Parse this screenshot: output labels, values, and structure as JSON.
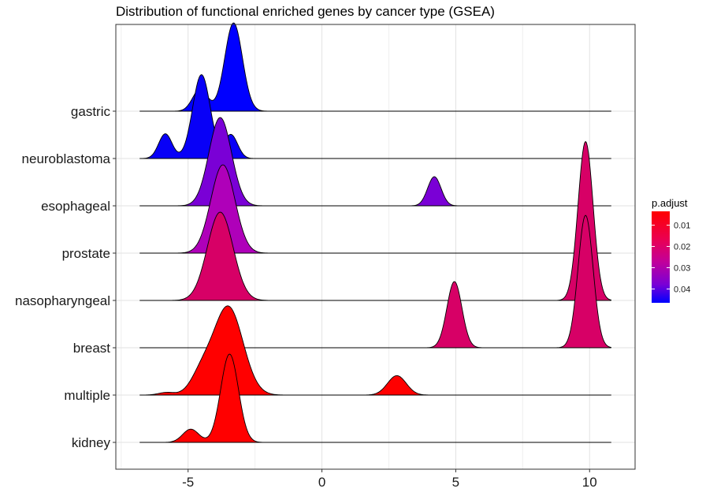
{
  "chart_data": {
    "type": "ridgeline",
    "title": "Distribution of functional enriched genes by cancer type (GSEA)",
    "xlabel": "",
    "ylabel": "",
    "xlim": [
      -7.7,
      11.7
    ],
    "xticks": [
      -5,
      0,
      5,
      10
    ],
    "grid": true,
    "legend": {
      "title": "p.adjust",
      "placement": "right",
      "range": [
        0.0035,
        0.0465
      ],
      "ticks": [
        0.01,
        0.02,
        0.03,
        0.04
      ],
      "tick_labels": [
        "0.01",
        "0.02",
        "0.03",
        "0.04"
      ],
      "color_low_p": "#FF0000",
      "color_high_p": "#0000FF"
    },
    "series": [
      {
        "name": "gastric",
        "color": "#0000FF",
        "x_range": [
          -6.8,
          10.8
        ],
        "peaks": [
          {
            "mu": -4.55,
            "sigma": 0.28,
            "h": 0.25
          },
          {
            "mu": -3.3,
            "sigma": 0.33,
            "h": 1.0
          }
        ]
      },
      {
        "name": "neuroblastoma",
        "color": "#0800F7",
        "x_range": [
          -6.8,
          10.8
        ],
        "peaks": [
          {
            "mu": -5.85,
            "sigma": 0.25,
            "h": 0.28
          },
          {
            "mu": -4.5,
            "sigma": 0.33,
            "h": 0.95
          },
          {
            "mu": -3.4,
            "sigma": 0.25,
            "h": 0.27
          }
        ]
      },
      {
        "name": "esophageal",
        "color": "#7A00D6",
        "x_range": [
          -6.8,
          10.8
        ],
        "peaks": [
          {
            "mu": -3.8,
            "sigma": 0.42,
            "h": 1.0
          },
          {
            "mu": 4.2,
            "sigma": 0.25,
            "h": 0.33
          }
        ]
      },
      {
        "name": "prostate",
        "color": "#AF00B9",
        "x_range": [
          -6.8,
          10.8
        ],
        "peaks": [
          {
            "mu": -3.7,
            "sigma": 0.45,
            "h": 1.0
          }
        ]
      },
      {
        "name": "nasopharyngeal",
        "color": "#D70066",
        "x_range": [
          -6.8,
          10.8
        ],
        "peaks": [
          {
            "mu": -3.8,
            "sigma": 0.48,
            "h": 1.0
          },
          {
            "mu": 9.85,
            "sigma": 0.28,
            "h": 1.8
          }
        ]
      },
      {
        "name": "breast",
        "color": "#D70066",
        "x_range": [
          -6.8,
          10.8
        ],
        "peaks": [
          {
            "mu": 4.95,
            "sigma": 0.28,
            "h": 0.75
          },
          {
            "mu": 9.85,
            "sigma": 0.28,
            "h": 1.5
          }
        ]
      },
      {
        "name": "multiple",
        "color": "#FF0000",
        "x_range": [
          -6.8,
          10.8
        ],
        "peaks": [
          {
            "mu": -5.8,
            "sigma": 0.3,
            "h": 0.03
          },
          {
            "mu": -4.5,
            "sigma": 0.4,
            "h": 0.22
          },
          {
            "mu": -3.5,
            "sigma": 0.55,
            "h": 1.0
          },
          {
            "mu": 2.8,
            "sigma": 0.35,
            "h": 0.22
          }
        ]
      },
      {
        "name": "kidney",
        "color": "#FF0000",
        "x_range": [
          -6.8,
          10.8
        ],
        "peaks": [
          {
            "mu": -4.9,
            "sigma": 0.3,
            "h": 0.15
          },
          {
            "mu": -3.45,
            "sigma": 0.33,
            "h": 1.0
          }
        ]
      }
    ]
  }
}
